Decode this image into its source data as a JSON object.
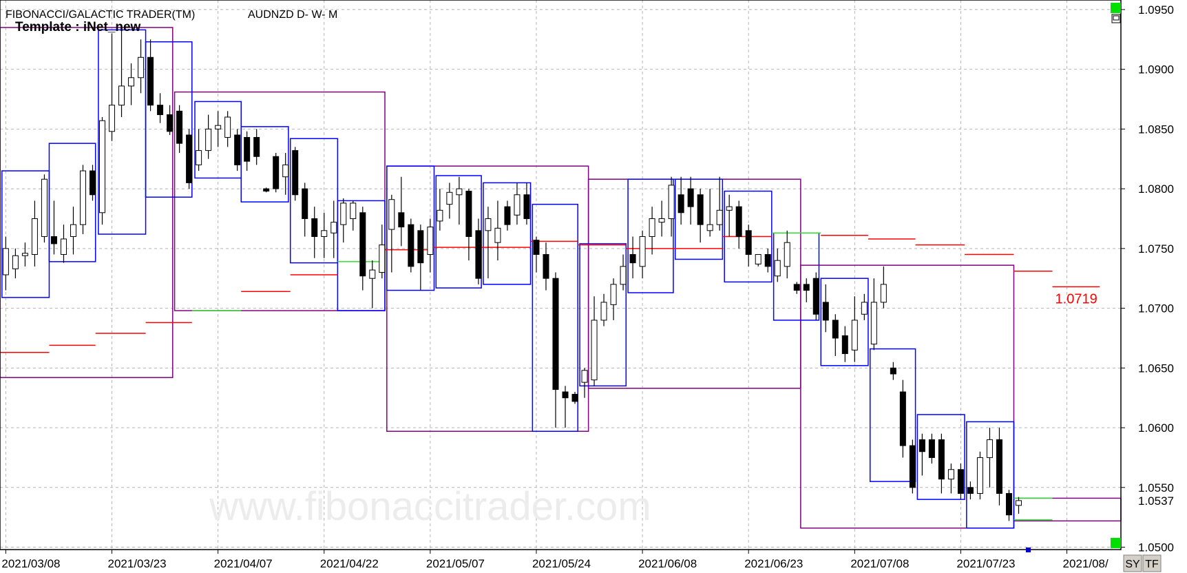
{
  "chart_data": {
    "type": "candlestick",
    "title": "FIBONACCI/GALACTIC TRADER(TM)",
    "subtitle": "AUDNZD D- W- M",
    "template": "Template : iNet_new",
    "watermark": "www.fibonaccitrader.com",
    "buttons": [
      "SY",
      "TF"
    ],
    "price_label": "1.0537",
    "level_label": "1.0719",
    "up_color": "#ffffff",
    "down_color": "#000000",
    "grid": true,
    "xlim": [
      -0.6,
      115.6
    ],
    "ylim": [
      1.0498,
      1.0958
    ],
    "xticks": [
      {
        "value": 0,
        "label": "2021/03/08"
      },
      {
        "value": 11,
        "label": "2021/03/23"
      },
      {
        "value": 22,
        "label": "2021/04/07"
      },
      {
        "value": 33,
        "label": "2021/04/22"
      },
      {
        "value": 44,
        "label": "2021/05/07"
      },
      {
        "value": 55,
        "label": "2021/05/24"
      },
      {
        "value": 66,
        "label": "2021/06/08"
      },
      {
        "value": 77,
        "label": "2021/06/23"
      },
      {
        "value": 88,
        "label": "2021/07/08"
      },
      {
        "value": 99,
        "label": "2021/07/23"
      },
      {
        "value": 110,
        "label": "2021/08/"
      }
    ],
    "yticks": [
      {
        "value": 1.05,
        "label": "1.0500"
      },
      {
        "value": 1.055,
        "label": "1.0550"
      },
      {
        "value": 1.06,
        "label": "1.0600"
      },
      {
        "value": 1.065,
        "label": "1.0650"
      },
      {
        "value": 1.07,
        "label": "1.0700"
      },
      {
        "value": 1.075,
        "label": "1.0750"
      },
      {
        "value": 1.08,
        "label": "1.0800"
      },
      {
        "value": 1.085,
        "label": "1.0850"
      },
      {
        "value": 1.09,
        "label": "1.0900"
      },
      {
        "value": 1.095,
        "label": "1.0950"
      }
    ],
    "candles": [
      [
        1.0728,
        1.076,
        1.0715,
        1.075
      ],
      [
        1.0733,
        1.075,
        1.0725,
        1.0744
      ],
      [
        1.0744,
        1.0755,
        1.0735,
        1.0746
      ],
      [
        1.0745,
        1.079,
        1.0735,
        1.0775
      ],
      [
        1.076,
        1.0812,
        1.0755,
        1.0808
      ],
      [
        1.076,
        1.079,
        1.0745,
        1.0754
      ],
      [
        1.0745,
        1.077,
        1.0738,
        1.0758
      ],
      [
        1.076,
        1.0785,
        1.0745,
        1.077
      ],
      [
        1.077,
        1.082,
        1.0762,
        1.0815
      ],
      [
        1.0815,
        1.082,
        1.079,
        1.0795
      ],
      [
        1.078,
        1.086,
        1.077,
        1.0857
      ],
      [
        1.0848,
        1.093,
        1.084,
        1.087
      ],
      [
        1.087,
        1.0935,
        1.086,
        1.0886
      ],
      [
        1.0886,
        1.0905,
        1.087,
        1.0893
      ],
      [
        1.0893,
        1.0925,
        1.088,
        1.091
      ],
      [
        1.091,
        1.0925,
        1.0865,
        1.087
      ],
      [
        1.087,
        1.088,
        1.0855,
        1.0862
      ],
      [
        1.0862,
        1.087,
        1.0845,
        1.0848
      ],
      [
        1.0865,
        1.087,
        1.083,
        1.0838
      ],
      [
        1.0845,
        1.085,
        1.08,
        1.0805
      ],
      [
        1.082,
        1.085,
        1.0815,
        1.0832
      ],
      [
        1.0832,
        1.0862,
        1.0825,
        1.085
      ],
      [
        1.085,
        1.0865,
        1.0835,
        1.0853
      ],
      [
        1.0843,
        1.0865,
        1.0835,
        1.086
      ],
      [
        1.0845,
        1.085,
        1.0815,
        1.082
      ],
      [
        1.0843,
        1.0848,
        1.0815,
        1.0823
      ],
      [
        1.0843,
        1.085,
        1.082,
        1.0827
      ],
      [
        1.08,
        1.0801,
        1.0797,
        1.0798
      ],
      [
        1.0827,
        1.083,
        1.0797,
        1.08
      ],
      [
        1.081,
        1.083,
        1.0795,
        1.082
      ],
      [
        1.0832,
        1.0835,
        1.079,
        1.0795
      ],
      [
        1.08,
        1.0805,
        1.076,
        1.0775
      ],
      [
        1.0775,
        1.0785,
        1.0742,
        1.076
      ],
      [
        1.076,
        1.078,
        1.0742,
        1.0765
      ],
      [
        1.0763,
        1.079,
        1.0742,
        1.0772
      ],
      [
        1.077,
        1.0792,
        1.0755,
        1.0788
      ],
      [
        1.0775,
        1.079,
        1.0765,
        1.0788
      ],
      [
        1.078,
        1.0785,
        1.0715,
        1.0727
      ],
      [
        1.0725,
        1.074,
        1.07,
        1.0732
      ],
      [
        1.073,
        1.077,
        1.0725,
        1.0753
      ],
      [
        1.0766,
        1.0795,
        1.073,
        1.0791
      ],
      [
        1.078,
        1.081,
        1.0752,
        1.0768
      ],
      [
        1.077,
        1.0775,
        1.073,
        1.0735
      ],
      [
        1.0765,
        1.077,
        1.0715,
        1.0738
      ],
      [
        1.0745,
        1.0775,
        1.073,
        1.0768
      ],
      [
        1.0773,
        1.08,
        1.0765,
        1.0782
      ],
      [
        1.0787,
        1.0805,
        1.0775,
        1.0797
      ],
      [
        1.0795,
        1.081,
        1.077,
        1.08
      ],
      [
        1.0798,
        1.08,
        1.074,
        1.076
      ],
      [
        1.0765,
        1.0775,
        1.072,
        1.0725
      ],
      [
        1.0765,
        1.0785,
        1.0725,
        1.0775
      ],
      [
        1.0755,
        1.079,
        1.074,
        1.0767
      ],
      [
        1.0785,
        1.079,
        1.0765,
        1.077
      ],
      [
        1.0778,
        1.0805,
        1.077,
        1.0795
      ],
      [
        1.0795,
        1.0805,
        1.077,
        1.0775
      ],
      [
        1.0757,
        1.076,
        1.073,
        1.0745
      ],
      [
        1.0745,
        1.0755,
        1.0715,
        1.0725
      ],
      [
        1.0725,
        1.073,
        1.06,
        1.0632
      ],
      [
        1.063,
        1.0635,
        1.06,
        1.0625
      ],
      [
        1.0628,
        1.063,
        1.062,
        1.0622
      ],
      [
        1.0638,
        1.065,
        1.0625,
        1.0648
      ],
      [
        1.064,
        1.071,
        1.0635,
        1.069
      ],
      [
        1.069,
        1.0712,
        1.0685,
        1.0705
      ],
      [
        1.0703,
        1.0725,
        1.069,
        1.072
      ],
      [
        1.072,
        1.0745,
        1.0715,
        1.0735
      ],
      [
        1.0745,
        1.076,
        1.0725,
        1.0738
      ],
      [
        1.0735,
        1.0765,
        1.0725,
        1.076
      ],
      [
        1.076,
        1.0785,
        1.0745,
        1.0775
      ],
      [
        1.0772,
        1.079,
        1.076,
        1.0775
      ],
      [
        1.0775,
        1.081,
        1.076,
        1.0803
      ],
      [
        1.0795,
        1.081,
        1.077,
        1.078
      ],
      [
        1.08,
        1.081,
        1.077,
        1.0785
      ],
      [
        1.0795,
        1.08,
        1.0755,
        1.077
      ],
      [
        1.0765,
        1.08,
        1.076,
        1.077
      ],
      [
        1.077,
        1.081,
        1.0765,
        1.0782
      ],
      [
        1.0782,
        1.0795,
        1.076,
        1.0785
      ],
      [
        1.0785,
        1.079,
        1.075,
        1.076
      ],
      [
        1.0765,
        1.077,
        1.0735,
        1.0745
      ],
      [
        1.0737,
        1.0745,
        1.0735,
        1.0745
      ],
      [
        1.0745,
        1.075,
        1.073,
        1.0735
      ],
      [
        1.0727,
        1.075,
        1.0722,
        1.074
      ],
      [
        1.0735,
        1.0765,
        1.0725,
        1.0755
      ],
      [
        1.072,
        1.0722,
        1.0712,
        1.0715
      ],
      [
        1.072,
        1.0725,
        1.0705,
        1.0715
      ],
      [
        1.0725,
        1.073,
        1.069,
        1.0695
      ],
      [
        1.0705,
        1.072,
        1.068,
        1.069
      ],
      [
        1.069,
        1.0695,
        1.066,
        1.0675
      ],
      [
        1.0677,
        1.0685,
        1.0655,
        1.0662
      ],
      [
        1.0665,
        1.071,
        1.0655,
        1.069
      ],
      [
        1.0695,
        1.0712,
        1.069,
        1.0705
      ],
      [
        1.067,
        1.0725,
        1.0665,
        1.0705
      ],
      [
        1.0705,
        1.0735,
        1.07,
        1.072
      ],
      [
        1.065,
        1.0655,
        1.064,
        1.0645
      ],
      [
        1.063,
        1.064,
        1.0575,
        1.0585
      ],
      [
        1.0585,
        1.059,
        1.0545,
        1.055
      ],
      [
        1.059,
        1.0595,
        1.056,
        1.058
      ],
      [
        1.059,
        1.0595,
        1.057,
        1.0575
      ],
      [
        1.059,
        1.0595,
        1.0545,
        1.0557
      ],
      [
        1.0557,
        1.057,
        1.0545,
        1.0565
      ],
      [
        1.0565,
        1.057,
        1.054,
        1.0545
      ],
      [
        1.055,
        1.0555,
        1.054,
        1.0545
      ],
      [
        1.0545,
        1.058,
        1.054,
        1.0575
      ],
      [
        1.0575,
        1.06,
        1.055,
        1.059
      ],
      [
        1.059,
        1.06,
        1.0535,
        1.0545
      ],
      [
        1.0545,
        1.0548,
        1.0522,
        1.0527
      ],
      [
        1.0535,
        1.0542,
        1.0528,
        1.0539
      ]
    ],
    "monthly_boxes": {
      "color": "#800080",
      "boxes": [
        [
          -0.6,
          17.3,
          1.0642,
          1.0935
        ],
        [
          17.5,
          39.3,
          1.0698,
          1.0881
        ],
        [
          39.5,
          60.4,
          1.0597,
          1.0819
        ],
        [
          60.4,
          82.4,
          1.0633,
          1.0808
        ],
        [
          82.4,
          104.5,
          1.0516,
          1.0736
        ],
        [
          104.5,
          115.6,
          1.0522,
          1.0541
        ]
      ]
    },
    "weekly_boxes": {
      "color": "#0000ff",
      "boxes": [
        [
          -0.4,
          4.5,
          1.0709,
          1.0815
        ],
        [
          4.5,
          9.3,
          1.0739,
          1.0838
        ],
        [
          9.6,
          14.5,
          1.0762,
          1.0933
        ],
        [
          14.5,
          19.3,
          1.0793,
          1.0923
        ],
        [
          19.6,
          24.4,
          1.0809,
          1.0873
        ],
        [
          24.4,
          29.3,
          1.0789,
          1.0852
        ],
        [
          29.5,
          34.4,
          1.0738,
          1.0842
        ],
        [
          34.4,
          39.3,
          1.0698,
          1.079
        ],
        [
          39.5,
          44.4,
          1.0715,
          1.0819
        ],
        [
          44.6,
          49.3,
          1.0717,
          1.0811
        ],
        [
          49.5,
          54.4,
          1.072,
          1.0805
        ],
        [
          54.6,
          59.3,
          1.0597,
          1.0787
        ],
        [
          59.5,
          64.3,
          1.0635,
          1.0754
        ],
        [
          64.5,
          69.2,
          1.0713,
          1.0808
        ],
        [
          69.4,
          74.3,
          1.0741,
          1.0808
        ],
        [
          74.5,
          79.4,
          1.0722,
          1.0798
        ],
        [
          79.6,
          84.3,
          1.069,
          1.0763
        ],
        [
          84.5,
          89.4,
          1.0652,
          1.0725
        ],
        [
          89.6,
          94.3,
          1.0555,
          1.0666
        ],
        [
          94.5,
          99.4,
          1.054,
          1.0611
        ],
        [
          99.6,
          104.5,
          1.0516,
          1.0605
        ]
      ]
    },
    "levels": [
      {
        "color": "#ff0000",
        "segments": [
          [
            -0.6,
            4.5,
            1.0663
          ],
          [
            4.5,
            9.3,
            1.0669
          ],
          [
            9.3,
            14.5,
            1.0679
          ],
          [
            14.5,
            19.3,
            1.0688
          ],
          [
            24.4,
            29.5,
            1.0714
          ],
          [
            29.5,
            34.4,
            1.0728
          ],
          [
            39.3,
            44.4,
            1.0749
          ],
          [
            44.4,
            54.4,
            1.0751
          ],
          [
            54.4,
            59.3,
            1.0756
          ],
          [
            59.3,
            64.3,
            1.0753
          ],
          [
            64.3,
            74.3,
            1.075
          ],
          [
            74.3,
            79.4,
            1.076
          ],
          [
            84.5,
            89.4,
            1.0761
          ],
          [
            89.4,
            94.3,
            1.0758
          ],
          [
            94.3,
            99.4,
            1.0753
          ],
          [
            99.4,
            104.5,
            1.0745
          ],
          [
            104.5,
            108.5,
            1.0731
          ],
          [
            108.5,
            113.4,
            1.0718
          ]
        ]
      },
      {
        "color": "#33dd33",
        "segments": [
          [
            19.3,
            24.4,
            1.0698
          ],
          [
            34.4,
            39.3,
            1.0739
          ],
          [
            79.4,
            84.5,
            1.0763
          ],
          [
            104.5,
            108.5,
            1.0541
          ],
          [
            104.5,
            108.5,
            1.0523
          ]
        ]
      }
    ]
  }
}
